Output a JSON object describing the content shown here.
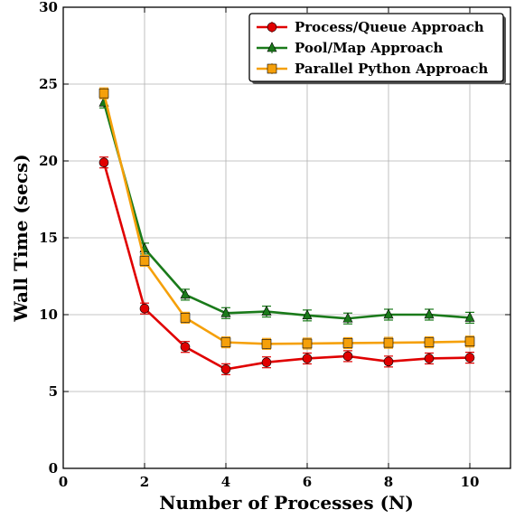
{
  "chart_data": {
    "type": "line",
    "title": "",
    "xlabel": "Number of Processes (N)",
    "ylabel": "Wall Time (secs)",
    "xlim": [
      0,
      11
    ],
    "ylim": [
      0,
      30
    ],
    "xticks": [
      0,
      2,
      4,
      6,
      8,
      10
    ],
    "yticks": [
      0,
      5,
      10,
      15,
      20,
      25,
      30
    ],
    "grid": true,
    "legend_position": "top-right",
    "x": [
      1,
      2,
      3,
      4,
      5,
      6,
      7,
      8,
      9,
      10
    ],
    "series": [
      {
        "name": "Process/Queue Approach",
        "color": "#e00000",
        "marker": "circle",
        "values": [
          19.9,
          10.4,
          7.9,
          6.45,
          6.9,
          7.15,
          7.3,
          6.95,
          7.15,
          7.2
        ]
      },
      {
        "name": "Pool/Map Approach",
        "color": "#1a7a1a",
        "marker": "triangle",
        "values": [
          23.8,
          14.3,
          11.3,
          10.1,
          10.2,
          9.95,
          9.75,
          10.0,
          10.0,
          9.8
        ]
      },
      {
        "name": "Parallel Python Approach",
        "color": "#f5a00a",
        "marker": "square",
        "values": [
          24.4,
          13.5,
          9.8,
          8.2,
          8.1,
          8.12,
          8.15,
          8.17,
          8.2,
          8.25
        ]
      }
    ]
  }
}
